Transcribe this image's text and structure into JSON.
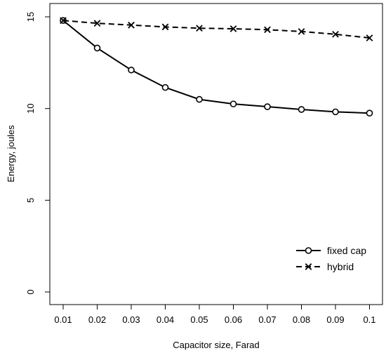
{
  "chart_data": {
    "type": "line",
    "title": "",
    "xlabel": "Capacitor size, Farad",
    "ylabel": "Energy, joules",
    "x": [
      0.01,
      0.02,
      0.03,
      0.04,
      0.05,
      0.06,
      0.07,
      0.08,
      0.09,
      0.1
    ],
    "x_tick_labels": [
      "0.01",
      "0.02",
      "0.03",
      "0.04",
      "0.05",
      "0.06",
      "0.07",
      "0.08",
      "0.09",
      "0.1"
    ],
    "ylim": [
      0,
      15
    ],
    "y_ticks": [
      0,
      5,
      10,
      15
    ],
    "grid": false,
    "legend_position": "bottom-right",
    "series": [
      {
        "name": "fixed cap",
        "line_style": "solid",
        "marker": "circle",
        "color": "#000000",
        "values": [
          14.8,
          13.3,
          12.1,
          11.15,
          10.5,
          10.25,
          10.1,
          9.95,
          9.82,
          9.75
        ]
      },
      {
        "name": "hybrid",
        "line_style": "dashed",
        "marker": "cross",
        "color": "#000000",
        "values": [
          14.8,
          14.65,
          14.55,
          14.45,
          14.38,
          14.35,
          14.3,
          14.2,
          14.05,
          13.85
        ]
      }
    ]
  }
}
